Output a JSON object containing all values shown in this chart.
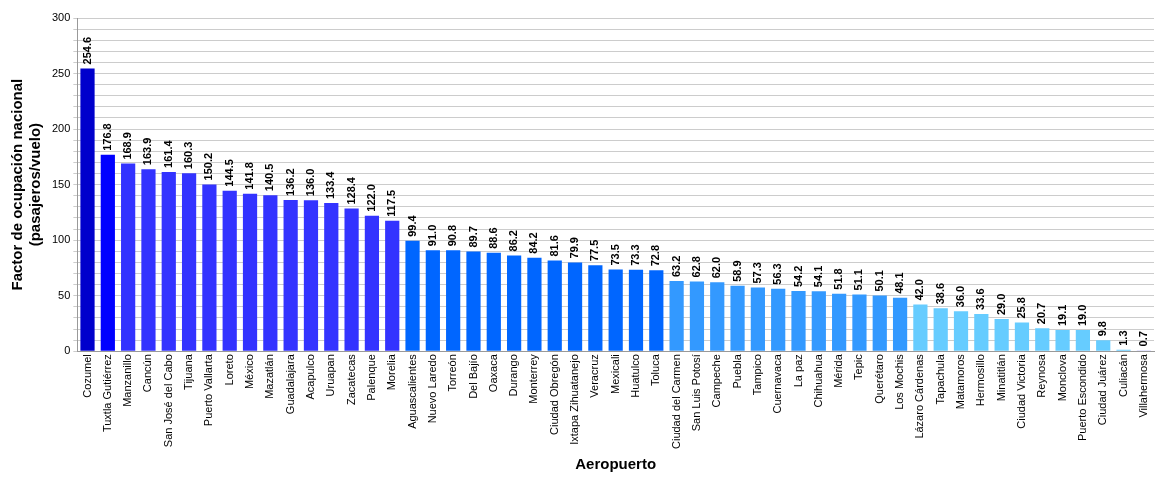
{
  "chart_data": {
    "type": "bar",
    "xlabel": "Aeropuerto",
    "ylabel": "Factor de ocupación nacional (pasajeros/vuelo)",
    "categories": [
      "Cozumel",
      "Tuxtla Gutiérrez",
      "Manzanillo",
      "Cancún",
      "San José del Cabo",
      "Tijuana",
      "Puerto Vallarta",
      "Loreto",
      "México",
      "Mazatlán",
      "Guadalajara",
      "Acapulco",
      "Uruapan",
      "Zacatecas",
      "Palenque",
      "Morelia",
      "Aguascalientes",
      "Nuevo Laredo",
      "Torreón",
      "Del Bajío",
      "Oaxaca",
      "Durango",
      "Monterrey",
      "Ciudad Obregón",
      "Ixtapa Zihuatanejo",
      "Veracruz",
      "Mexicali",
      "Huatulco",
      "Toluca",
      "Ciudad del Carmen",
      "San Luis Potosí",
      "Campeche",
      "Puebla",
      "Tampico",
      "Cuernavaca",
      "La paz",
      "Chihuahua",
      "Mérida",
      "Tepic",
      "Querétaro",
      "Los Mochis",
      "Lázaro Cárdenas",
      "Tapachula",
      "Matamoros",
      "Hermosillo",
      "Minatitlán",
      "Ciudad Victoria",
      "Reynosa",
      "Monclova",
      "Puerto Escondido",
      "Ciudad Juárez",
      "Culiacán",
      "Villahermosa"
    ],
    "values": [
      254.6,
      176.8,
      168.9,
      163.9,
      161.4,
      160.3,
      150.2,
      144.5,
      141.8,
      140.5,
      136.2,
      136.0,
      133.4,
      128.4,
      122.0,
      117.5,
      99.4,
      91.0,
      90.8,
      89.7,
      88.6,
      86.2,
      84.2,
      81.6,
      79.9,
      77.5,
      73.5,
      73.3,
      72.8,
      63.2,
      62.8,
      62.0,
      58.9,
      57.3,
      56.3,
      54.2,
      54.1,
      51.8,
      51.1,
      50.1,
      48.1,
      42.0,
      38.6,
      36.0,
      33.6,
      29.0,
      25.8,
      20.7,
      19.1,
      19.0,
      9.8,
      1.3,
      0.7
    ],
    "colors": [
      "#0000cc",
      "#0000ff",
      "#3333ff",
      "#3333ff",
      "#3333ff",
      "#3333ff",
      "#3333ff",
      "#3333ff",
      "#3333ff",
      "#3333ff",
      "#3333ff",
      "#3333ff",
      "#3333ff",
      "#3333ff",
      "#3333ff",
      "#3333ff",
      "#0066ff",
      "#0066ff",
      "#0066ff",
      "#0066ff",
      "#0066ff",
      "#0066ff",
      "#0066ff",
      "#0066ff",
      "#0066ff",
      "#0066ff",
      "#0066ff",
      "#0066ff",
      "#0066ff",
      "#3399ff",
      "#3399ff",
      "#3399ff",
      "#3399ff",
      "#3399ff",
      "#3399ff",
      "#3399ff",
      "#3399ff",
      "#3399ff",
      "#3399ff",
      "#3399ff",
      "#3399ff",
      "#66ccff",
      "#66ccff",
      "#66ccff",
      "#66ccff",
      "#66ccff",
      "#66ccff",
      "#66ccff",
      "#66ccff",
      "#66ccff",
      "#66ccff",
      "#66ccff",
      "#9999ff"
    ],
    "ylim": [
      0,
      300
    ],
    "yticks": [
      0,
      {
        "value": 10,
        "label": null
      },
      {
        "value": 20,
        "label": null
      },
      {
        "value": 30,
        "label": null
      },
      {
        "value": 40,
        "label": null
      },
      50,
      {
        "value": 60,
        "label": null
      },
      {
        "value": 70,
        "label": null
      },
      {
        "value": 80,
        "label": null
      },
      {
        "value": 90,
        "label": null
      },
      100,
      {
        "value": 110,
        "label": null
      },
      {
        "value": 120,
        "label": null
      },
      {
        "value": 130,
        "label": null
      },
      {
        "value": 140,
        "label": null
      },
      150,
      {
        "value": 160,
        "label": null
      },
      {
        "value": 170,
        "label": null
      },
      {
        "value": 180,
        "label": null
      },
      {
        "value": 190,
        "label": null
      },
      200,
      {
        "value": 210,
        "label": null
      },
      {
        "value": 220,
        "label": null
      },
      {
        "value": 230,
        "label": null
      },
      {
        "value": 240,
        "label": null
      },
      250,
      {
        "value": 260,
        "label": null
      },
      {
        "value": 270,
        "label": null
      },
      {
        "value": 280,
        "label": null
      },
      {
        "value": 290,
        "label": null
      },
      300
    ],
    "value_labels": [
      "254.6",
      "176.8",
      "168.9",
      "163.9",
      "161.4",
      "160.3",
      "150.2",
      "144.5",
      "141.8",
      "140.5",
      "136.2",
      "136.0",
      "133.4",
      "128.4",
      "122.0",
      "117.5",
      "99.4",
      "91.0",
      "90.8",
      "89.7",
      "88.6",
      "86.2",
      "84.2",
      "81.6",
      "79.9",
      "77.5",
      "73.5",
      "73.3",
      "72.8",
      "63.2",
      "62.8",
      "62.0",
      "58.9",
      "57.3",
      "56.3",
      "54.2",
      "54.1",
      "51.8",
      "51.1",
      "50.1",
      "48.1",
      "42.0",
      "38.6",
      "36.0",
      "33.6",
      "29.0",
      "25.8",
      "20.7",
      "19.1",
      "19.0",
      "9.8",
      "1.3",
      "0.7"
    ],
    "grid": "y"
  }
}
